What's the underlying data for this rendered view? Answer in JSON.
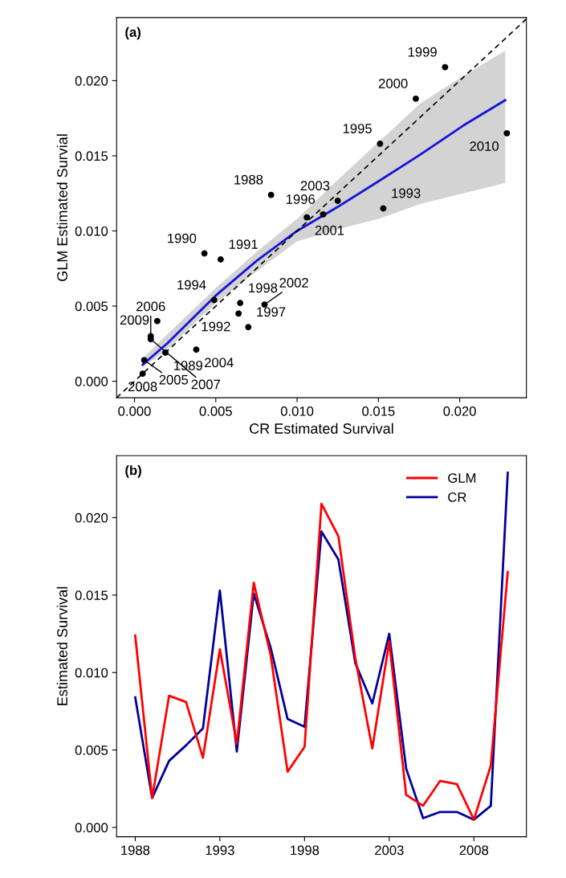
{
  "chart_data": [
    {
      "type": "scatter",
      "title": "(a)",
      "xlabel": "CR Estimated Survival",
      "ylabel": "GLM Estimated Survial",
      "xlim": [
        -0.0011,
        0.0241
      ],
      "ylim": [
        -0.0011,
        0.0242
      ],
      "xticks": [
        {
          "value": 0,
          "label": "0.000"
        },
        {
          "value": 0.005,
          "label": "0.005"
        },
        {
          "value": 0.01,
          "label": "0.010"
        },
        {
          "value": 0.015,
          "label": "0.015"
        },
        {
          "value": 0.02,
          "label": "0.020"
        }
      ],
      "yticks": [
        {
          "value": 0,
          "label": "0.000"
        },
        {
          "value": 0.005,
          "label": "0.005"
        },
        {
          "value": 0.01,
          "label": "0.010"
        },
        {
          "value": 0.015,
          "label": "0.015"
        },
        {
          "value": 0.02,
          "label": "0.020"
        }
      ],
      "grid": false,
      "legend": false,
      "marker": "circle",
      "series": [
        {
          "type": "line",
          "color": "#000000",
          "line_style": "dashed",
          "marker": "none",
          "x": [
            -0.0011,
            0.0241
          ],
          "values": [
            -0.0011,
            0.0241
          ]
        },
        {
          "type": "line",
          "color": "#1515d8",
          "line_style": "solid",
          "marker": "none",
          "x": [
            0.0005,
            0.002,
            0.005,
            0.0075,
            0.01,
            0.0125,
            0.015,
            0.0176,
            0.0202,
            0.0228
          ],
          "values": [
            0.0011,
            0.0025,
            0.0057,
            0.008,
            0.01,
            0.0116,
            0.0133,
            0.0151,
            0.017,
            0.0187
          ],
          "lower": [
            0.0009,
            0.0021,
            0.0052,
            0.0073,
            0.0093,
            0.0101,
            0.0108,
            0.0118,
            0.0125,
            0.0132
          ],
          "upper": [
            0.0015,
            0.0031,
            0.0062,
            0.0086,
            0.0108,
            0.0134,
            0.0159,
            0.0185,
            0.0203,
            0.022
          ]
        },
        {
          "type": "scatter",
          "color": "#000000",
          "x": [
            0.0084,
            0.0019,
            0.0043,
            0.0053,
            0.0064,
            0.0153,
            0.0049,
            0.0151,
            0.0116,
            0.007,
            0.0065,
            0.0191,
            0.0173,
            0.0106,
            0.008,
            0.0125,
            0.0038,
            0.0006,
            0.001,
            0.001,
            0.0005,
            0.0014,
            0.0229
          ],
          "values": [
            0.0124,
            0.0019,
            0.0085,
            0.0081,
            0.0045,
            0.0115,
            0.0054,
            0.0158,
            0.0111,
            0.0036,
            0.0052,
            0.0209,
            0.0188,
            0.0109,
            0.0051,
            0.012,
            0.0021,
            0.0014,
            0.003,
            0.0028,
            0.0005,
            0.004,
            0.0165
          ]
        }
      ],
      "annotations": [
        {
          "text": "1988",
          "x": 0.0084,
          "y": 0.0124
        },
        {
          "text": "1989",
          "x": 0.0019,
          "y": 0.0019
        },
        {
          "text": "1990",
          "x": 0.0043,
          "y": 0.0085
        },
        {
          "text": "1991",
          "x": 0.0053,
          "y": 0.0081
        },
        {
          "text": "1992",
          "x": 0.0064,
          "y": 0.0045
        },
        {
          "text": "1993",
          "x": 0.0153,
          "y": 0.0115
        },
        {
          "text": "1994",
          "x": 0.0049,
          "y": 0.0054
        },
        {
          "text": "1995",
          "x": 0.0151,
          "y": 0.0158
        },
        {
          "text": "1996",
          "x": 0.0116,
          "y": 0.0111
        },
        {
          "text": "1997",
          "x": 0.007,
          "y": 0.0036
        },
        {
          "text": "1998",
          "x": 0.0065,
          "y": 0.0052
        },
        {
          "text": "1999",
          "x": 0.0191,
          "y": 0.0209
        },
        {
          "text": "2000",
          "x": 0.0173,
          "y": 0.0188
        },
        {
          "text": "2001",
          "x": 0.0106,
          "y": 0.0109
        },
        {
          "text": "2002",
          "x": 0.008,
          "y": 0.0051
        },
        {
          "text": "2003",
          "x": 0.0125,
          "y": 0.012
        },
        {
          "text": "2004",
          "x": 0.0038,
          "y": 0.0021
        },
        {
          "text": "2005",
          "x": 0.0006,
          "y": 0.0014
        },
        {
          "text": "2006",
          "x": 0.001,
          "y": 0.003
        },
        {
          "text": "2007",
          "x": 0.001,
          "y": 0.0028
        },
        {
          "text": "2008",
          "x": 0.0005,
          "y": 0.0005
        },
        {
          "text": "2009",
          "x": 0.0014,
          "y": 0.004
        },
        {
          "text": "2010",
          "x": 0.0229,
          "y": 0.0165
        }
      ]
    },
    {
      "type": "line",
      "title": "(b)",
      "ylabel": "Estimated Survival",
      "x": [
        1988,
        1989,
        1990,
        1991,
        1992,
        1993,
        1994,
        1995,
        1996,
        1997,
        1998,
        1999,
        2000,
        2001,
        2002,
        2003,
        2004,
        2005,
        2006,
        2007,
        2008,
        2009,
        2010
      ],
      "xlim": [
        1986.9,
        2011.1
      ],
      "ylim": [
        -0.0006,
        0.024
      ],
      "xticks": [
        1988,
        1993,
        1998,
        2003,
        2008
      ],
      "yticks": [
        {
          "value": 0,
          "label": "0.000"
        },
        {
          "value": 0.005,
          "label": "0.005"
        },
        {
          "value": 0.01,
          "label": "0.010"
        },
        {
          "value": 0.015,
          "label": "0.015"
        },
        {
          "value": 0.02,
          "label": "0.020"
        }
      ],
      "grid": false,
      "legend": "top right",
      "marker": "none",
      "line_style": "solid",
      "series": [
        {
          "name": "GLM",
          "color": "#ff0000",
          "values": [
            0.0124,
            0.0019,
            0.0085,
            0.0081,
            0.0045,
            0.0115,
            0.0054,
            0.0158,
            0.0111,
            0.0036,
            0.0052,
            0.0209,
            0.0188,
            0.0109,
            0.0051,
            0.012,
            0.0021,
            0.0014,
            0.003,
            0.0028,
            0.0005,
            0.004,
            0.0165
          ]
        },
        {
          "name": "CR",
          "color": "#00009c",
          "values": [
            0.0084,
            0.0019,
            0.0043,
            0.0053,
            0.0064,
            0.0153,
            0.0049,
            0.0151,
            0.0116,
            0.007,
            0.0065,
            0.0191,
            0.0173,
            0.0106,
            0.008,
            0.0125,
            0.0038,
            0.0006,
            0.001,
            0.001,
            0.0005,
            0.0014,
            0.0229
          ]
        }
      ]
    }
  ]
}
